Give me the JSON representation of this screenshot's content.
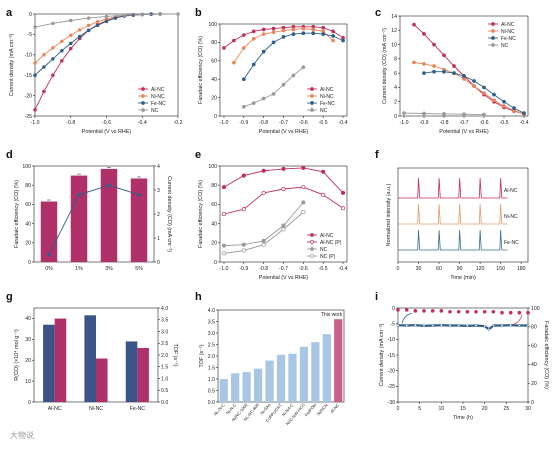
{
  "figure": {
    "panel_labels": [
      "a",
      "b",
      "c",
      "d",
      "e",
      "f",
      "g",
      "h",
      "i"
    ],
    "watermark": "大物说"
  },
  "colors": {
    "alnc": "#c0305a",
    "ninc": "#e8875a",
    "fenc": "#2f5f8a",
    "nc": "#9a9a9a",
    "bar_pink": "#b0306a",
    "bar_navy": "#3a5487",
    "bar_light": "#a9c6e4",
    "line_f_ni": "#e59a6e",
    "line_f_fe": "#3a6f92"
  },
  "chart_data": [
    {
      "panel": "a",
      "type": "line",
      "xlabel": "Potential (V vs RHE)",
      "ylabel": "Current density (mA cm⁻²)",
      "xlim": [
        -1.0,
        -0.2
      ],
      "ylim": [
        -25,
        0
      ],
      "xticks": [
        -1.0,
        -0.8,
        -0.6,
        -0.4,
        -0.2
      ],
      "xtick_labels": [
        "-1.0",
        "-0.8",
        "-0.6",
        "-0.4",
        "-0.2"
      ],
      "yticks": [
        -25,
        -20,
        -15,
        -10,
        -5,
        0
      ],
      "ytick_labels": [
        "-25",
        "-20",
        "-15",
        "-10",
        "-5",
        "0"
      ],
      "legend_position": "bottom-right",
      "series": [
        {
          "name": "Al-NC",
          "color_key": "alnc",
          "x": [
            -1.0,
            -0.95,
            -0.9,
            -0.85,
            -0.8,
            -0.75,
            -0.7,
            -0.65,
            -0.6,
            -0.55,
            -0.5,
            -0.45,
            -0.4,
            -0.35,
            -0.3
          ],
          "y": [
            -23.5,
            -19,
            -15,
            -11.5,
            -8.5,
            -6,
            -4,
            -2.6,
            -1.6,
            -0.9,
            -0.5,
            -0.3,
            -0.15,
            -0.05,
            0
          ]
        },
        {
          "name": "Ni-NC",
          "color_key": "ninc",
          "x": [
            -1.0,
            -0.95,
            -0.9,
            -0.85,
            -0.8,
            -0.75,
            -0.7,
            -0.65,
            -0.6,
            -0.55,
            -0.5,
            -0.45,
            -0.4,
            -0.35,
            -0.3
          ],
          "y": [
            -12,
            -10,
            -8.3,
            -6.7,
            -5.2,
            -3.9,
            -2.8,
            -1.9,
            -1.2,
            -0.7,
            -0.4,
            -0.2,
            -0.1,
            0,
            0
          ]
        },
        {
          "name": "Fe-NC",
          "color_key": "fenc",
          "x": [
            -1.0,
            -0.95,
            -0.9,
            -0.85,
            -0.8,
            -0.75,
            -0.7,
            -0.65,
            -0.6,
            -0.55,
            -0.5,
            -0.45,
            -0.4,
            -0.35,
            -0.3
          ],
          "y": [
            -15,
            -13,
            -11,
            -9,
            -7.2,
            -5.5,
            -4,
            -2.8,
            -1.8,
            -1,
            -0.5,
            -0.2,
            -0.1,
            0,
            0
          ]
        },
        {
          "name": "NC",
          "color_key": "nc",
          "x": [
            -1.0,
            -0.9,
            -0.8,
            -0.7,
            -0.6,
            -0.5,
            -0.4,
            -0.3,
            -0.2
          ],
          "y": [
            -3.2,
            -2.3,
            -1.6,
            -1.0,
            -0.6,
            -0.3,
            -0.12,
            -0.05,
            0
          ]
        }
      ]
    },
    {
      "panel": "b",
      "type": "line",
      "xlabel": "Potential (V vs RHE)",
      "ylabel": "Faradaic efficiency (CO) (%)",
      "xlim": [
        -1.02,
        -0.38
      ],
      "ylim": [
        0,
        100
      ],
      "xticks": [
        -1.0,
        -0.9,
        -0.8,
        -0.7,
        -0.6,
        -0.5,
        -0.4
      ],
      "xtick_labels": [
        "-1.0",
        "-0.9",
        "-0.8",
        "-0.7",
        "-0.6",
        "-0.5",
        "-0.4"
      ],
      "yticks": [
        0,
        20,
        40,
        60,
        80,
        100
      ],
      "ytick_labels": [
        "0",
        "20",
        "40",
        "60",
        "80",
        "100"
      ],
      "legend_position": "bottom-right",
      "series": [
        {
          "name": "Al-NC",
          "color_key": "alnc",
          "x": [
            -1.0,
            -0.95,
            -0.9,
            -0.85,
            -0.8,
            -0.75,
            -0.7,
            -0.65,
            -0.6,
            -0.55,
            -0.5,
            -0.45,
            -0.4
          ],
          "y": [
            74,
            82,
            88,
            92,
            94,
            95,
            96,
            97,
            97,
            97,
            96,
            92,
            85
          ]
        },
        {
          "name": "Ni-NC",
          "color_key": "ninc",
          "x": [
            -0.95,
            -0.9,
            -0.85,
            -0.8,
            -0.75,
            -0.7,
            -0.65,
            -0.6,
            -0.55,
            -0.5,
            -0.45
          ],
          "y": [
            58,
            74,
            84,
            89,
            91,
            93,
            94,
            95,
            94,
            92,
            82
          ]
        },
        {
          "name": "Fe-NC",
          "color_key": "fenc",
          "x": [
            -0.9,
            -0.85,
            -0.8,
            -0.75,
            -0.7,
            -0.65,
            -0.6,
            -0.55,
            -0.5,
            -0.45,
            -0.4
          ],
          "y": [
            40,
            56,
            70,
            80,
            86,
            89,
            90,
            90,
            89,
            87,
            82
          ]
        },
        {
          "name": "NC",
          "color_key": "nc",
          "x": [
            -0.9,
            -0.85,
            -0.8,
            -0.75,
            -0.7,
            -0.65,
            -0.6
          ],
          "y": [
            10,
            14,
            19,
            24,
            34,
            44,
            53
          ]
        }
      ]
    },
    {
      "panel": "c",
      "type": "line",
      "xlabel": "Potential (V vs RHE)",
      "ylabel": "Current density (CO) (mA cm⁻²)",
      "xlim": [
        -1.02,
        -0.38
      ],
      "ylim": [
        0,
        14
      ],
      "xticks": [
        -1.0,
        -0.9,
        -0.8,
        -0.7,
        -0.6,
        -0.5,
        -0.4
      ],
      "xtick_labels": [
        "-1.0",
        "-0.9",
        "-0.8",
        "-0.7",
        "-0.6",
        "-0.5",
        "-0.4"
      ],
      "yticks": [
        0,
        2,
        4,
        6,
        8,
        10,
        12,
        14
      ],
      "ytick_labels": [
        "0",
        "2",
        "4",
        "6",
        "8",
        "10",
        "12",
        "14"
      ],
      "legend_position": "top-right",
      "series": [
        {
          "name": "Al-NC",
          "color_key": "alnc",
          "x": [
            -0.95,
            -0.9,
            -0.85,
            -0.8,
            -0.75,
            -0.7,
            -0.65,
            -0.6,
            -0.55,
            -0.5,
            -0.45,
            -0.4
          ],
          "y": [
            12.8,
            11.5,
            10,
            8.5,
            7,
            5.6,
            4.2,
            3,
            2,
            1.2,
            0.7,
            0.3
          ]
        },
        {
          "name": "Ni-NC",
          "color_key": "ninc",
          "x": [
            -0.95,
            -0.9,
            -0.85,
            -0.8,
            -0.75,
            -0.7,
            -0.65,
            -0.6,
            -0.55,
            -0.5,
            -0.45,
            -0.4
          ],
          "y": [
            7.5,
            7.3,
            7,
            6.5,
            6,
            5.2,
            4.2,
            3.2,
            2.2,
            1.4,
            0.8,
            0.3
          ]
        },
        {
          "name": "Fe-NC",
          "color_key": "fenc",
          "x": [
            -0.9,
            -0.85,
            -0.8,
            -0.75,
            -0.7,
            -0.65,
            -0.6,
            -0.55,
            -0.5,
            -0.45,
            -0.4
          ],
          "y": [
            6,
            6.2,
            6.2,
            6,
            5.6,
            4.9,
            4,
            3,
            2,
            1.1,
            0.4
          ]
        },
        {
          "name": "NC",
          "color_key": "nc",
          "x": [
            -1.0,
            -0.9,
            -0.8,
            -0.7,
            -0.6
          ],
          "y": [
            0.4,
            0.35,
            0.3,
            0.25,
            0.2
          ]
        }
      ]
    },
    {
      "panel": "d",
      "type": "bar",
      "categories": [
        "0%",
        "1%",
        "3%",
        "5%"
      ],
      "ylabel": "Faradaic efficiency (CO) (%)",
      "y2label": "Current density (CO) (mA cm⁻²)",
      "ylim": [
        0,
        100
      ],
      "y2lim": [
        0,
        4
      ],
      "yticks": [
        0,
        20,
        40,
        60,
        80,
        100
      ],
      "ytick_labels": [
        "0",
        "20",
        "40",
        "60",
        "80",
        "100"
      ],
      "y2ticks": [
        0,
        1,
        2,
        3,
        4
      ],
      "y2tick_labels": [
        "0",
        "1",
        "2",
        "3",
        "4"
      ],
      "bar_color_key": "bar_pink",
      "line_color_key": "fenc",
      "values": [
        63,
        90,
        97,
        87
      ],
      "line_values": [
        0.3,
        2.8,
        3.2,
        2.8
      ]
    },
    {
      "panel": "e",
      "type": "line",
      "xlabel": "Potential (V vs RHE)",
      "ylabel": "Faradaic efficiency (CO) (%)",
      "xlim": [
        -1.02,
        -0.38
      ],
      "ylim": [
        0,
        100
      ],
      "xticks": [
        -1.0,
        -0.9,
        -0.8,
        -0.7,
        -0.6,
        -0.5,
        -0.4
      ],
      "xtick_labels": [
        "-1.0",
        "-0.9",
        "-0.8",
        "-0.7",
        "-0.6",
        "-0.5",
        "-0.4"
      ],
      "yticks": [
        0,
        20,
        40,
        60,
        80,
        100
      ],
      "ytick_labels": [
        "0",
        "20",
        "40",
        "60",
        "80",
        "100"
      ],
      "legend_position": "bottom-right",
      "series": [
        {
          "name": "Al-NC",
          "color_key": "alnc",
          "filled": true,
          "x": [
            -1.0,
            -0.9,
            -0.8,
            -0.7,
            -0.6,
            -0.5,
            -0.4
          ],
          "y": [
            78,
            90,
            95,
            97,
            98,
            94,
            72
          ]
        },
        {
          "name": "Al-NC (P)",
          "color_key": "alnc",
          "filled": false,
          "x": [
            -1.0,
            -0.9,
            -0.8,
            -0.7,
            -0.6,
            -0.5,
            -0.4
          ],
          "y": [
            50,
            55,
            72,
            76,
            78,
            70,
            56
          ]
        },
        {
          "name": "NC",
          "color_key": "nc",
          "filled": true,
          "x": [
            -1.0,
            -0.9,
            -0.8,
            -0.7,
            -0.6
          ],
          "y": [
            17,
            18,
            22,
            38,
            62
          ]
        },
        {
          "name": "NC (P)",
          "color_key": "nc",
          "filled": false,
          "x": [
            -1.0,
            -0.9,
            -0.8,
            -0.7,
            -0.6
          ],
          "y": [
            9,
            12,
            18,
            34,
            52
          ]
        }
      ]
    },
    {
      "panel": "f",
      "type": "line",
      "xlabel": "Time (min)",
      "ylabel": "Normalized intensity (a.u.)",
      "xlim": [
        0,
        190
      ],
      "xticks": [
        0,
        30,
        60,
        90,
        120,
        150,
        180
      ],
      "xtick_labels": [
        "0",
        "30",
        "60",
        "90",
        "120",
        "150",
        "180"
      ],
      "peak_times": [
        30,
        60,
        90,
        120,
        150
      ],
      "series": [
        {
          "name": "Al-NC",
          "color_key": "alnc",
          "peak_heights": [
            0.9,
            0.9,
            0.9,
            0.9,
            0.9
          ]
        },
        {
          "name": "Ni-NC",
          "color_key": "line_f_ni",
          "peak_heights": [
            0.9,
            0.9,
            0.9,
            0.9,
            0.9
          ]
        },
        {
          "name": "Fe-NC",
          "color_key": "line_f_fe",
          "peak_heights": [
            0.9,
            0.9,
            0.9,
            0.9,
            0.9
          ]
        }
      ]
    },
    {
      "panel": "g",
      "type": "bar",
      "categories": [
        "Al-NC",
        "Ni-NC",
        "Fe-NC"
      ],
      "ylabel": "R(CO) (×10⁴ mol g⁻¹)",
      "y2label": "TOF (s⁻¹)",
      "ylim": [
        0,
        45
      ],
      "y2lim": [
        0,
        4
      ],
      "yticks": [
        0,
        10,
        20,
        30,
        40
      ],
      "ytick_labels": [
        "0",
        "10",
        "20",
        "30",
        "40"
      ],
      "y2ticks": [
        0,
        0.5,
        1.0,
        1.5,
        2.0,
        2.5,
        3.0,
        3.5,
        4.0
      ],
      "y2tick_labels": [
        "0.0",
        "0.5",
        "1.0",
        "1.5",
        "2.0",
        "2.5",
        "3.0",
        "3.5",
        "4.0"
      ],
      "series": [
        {
          "name": "R(CO)",
          "color_key": "bar_navy",
          "values": [
            37,
            41.5,
            29
          ]
        },
        {
          "name": "TOF",
          "color_key": "bar_pink",
          "values": [
            3.55,
            1.85,
            2.3
          ]
        }
      ]
    },
    {
      "panel": "h",
      "type": "bar",
      "annotation": "This work",
      "ylabel": "TOF (s⁻¹)",
      "ylim": [
        0,
        4.0
      ],
      "yticks": [
        0,
        0.5,
        1.0,
        1.5,
        2.0,
        2.5,
        3.0,
        3.5,
        4.0
      ],
      "ytick_labels": [
        "0.0",
        "0.5",
        "1.0",
        "1.5",
        "2.0",
        "2.5",
        "3.0",
        "3.5",
        "4.0"
      ],
      "categories": [
        "Ni₁-N-C",
        "Ni-N-C",
        "Ni/NC-1000",
        "Ni₁-NC-800",
        "Ni-SAs",
        "CoPPc/CNT",
        "Ni-N4-C",
        "Ni/C-NiN-HCS",
        "Fe/PON",
        "Ni/NCN",
        "Al-NC"
      ],
      "values": [
        1.0,
        1.25,
        1.3,
        1.45,
        1.8,
        2.05,
        2.1,
        2.4,
        2.6,
        2.95,
        3.6
      ],
      "highlight_index": 10
    },
    {
      "panel": "i",
      "type": "scatter",
      "xlabel": "Time (h)",
      "ylabel": "Current density (mA cm⁻²)",
      "y2label": "Faradaic efficiency (CO) (%)",
      "xlim": [
        0,
        30
      ],
      "ylim": [
        -30,
        0
      ],
      "y2lim": [
        0,
        100
      ],
      "xticks": [
        0,
        5,
        10,
        15,
        20,
        25,
        30
      ],
      "xtick_labels": [
        "0",
        "5",
        "10",
        "15",
        "20",
        "25",
        "30"
      ],
      "yticks": [
        -30,
        -25,
        -20,
        -15,
        -10,
        -5,
        0
      ],
      "ytick_labels": [
        "-30",
        "-25",
        "-20",
        "-15",
        "-10",
        "-5",
        "0"
      ],
      "y2ticks": [
        0,
        20,
        40,
        60,
        80,
        100
      ],
      "y2tick_labels": [
        "0",
        "20",
        "40",
        "60",
        "80",
        "100"
      ],
      "current_series": {
        "color_key": "fenc",
        "x": [
          0,
          2,
          4,
          6,
          8,
          10,
          12,
          14,
          16,
          18,
          20,
          21,
          22,
          24,
          26,
          28,
          30
        ],
        "y": [
          -5.5,
          -5.6,
          -5.5,
          -5.7,
          -5.6,
          -5.5,
          -5.6,
          -5.6,
          -5.7,
          -5.6,
          -5.8,
          -6.8,
          -5.6,
          -5.6,
          -5.5,
          -5.6,
          -5.6
        ]
      },
      "fe_series": {
        "color_key": "alnc",
        "x": [
          0,
          2,
          4,
          6,
          8,
          10,
          12,
          14,
          16,
          18,
          20,
          22,
          24,
          26,
          28,
          30
        ],
        "y": [
          98,
          98,
          97,
          97,
          97,
          97,
          96,
          96,
          96,
          96,
          96,
          96,
          95,
          95,
          95,
          95
        ]
      }
    }
  ]
}
